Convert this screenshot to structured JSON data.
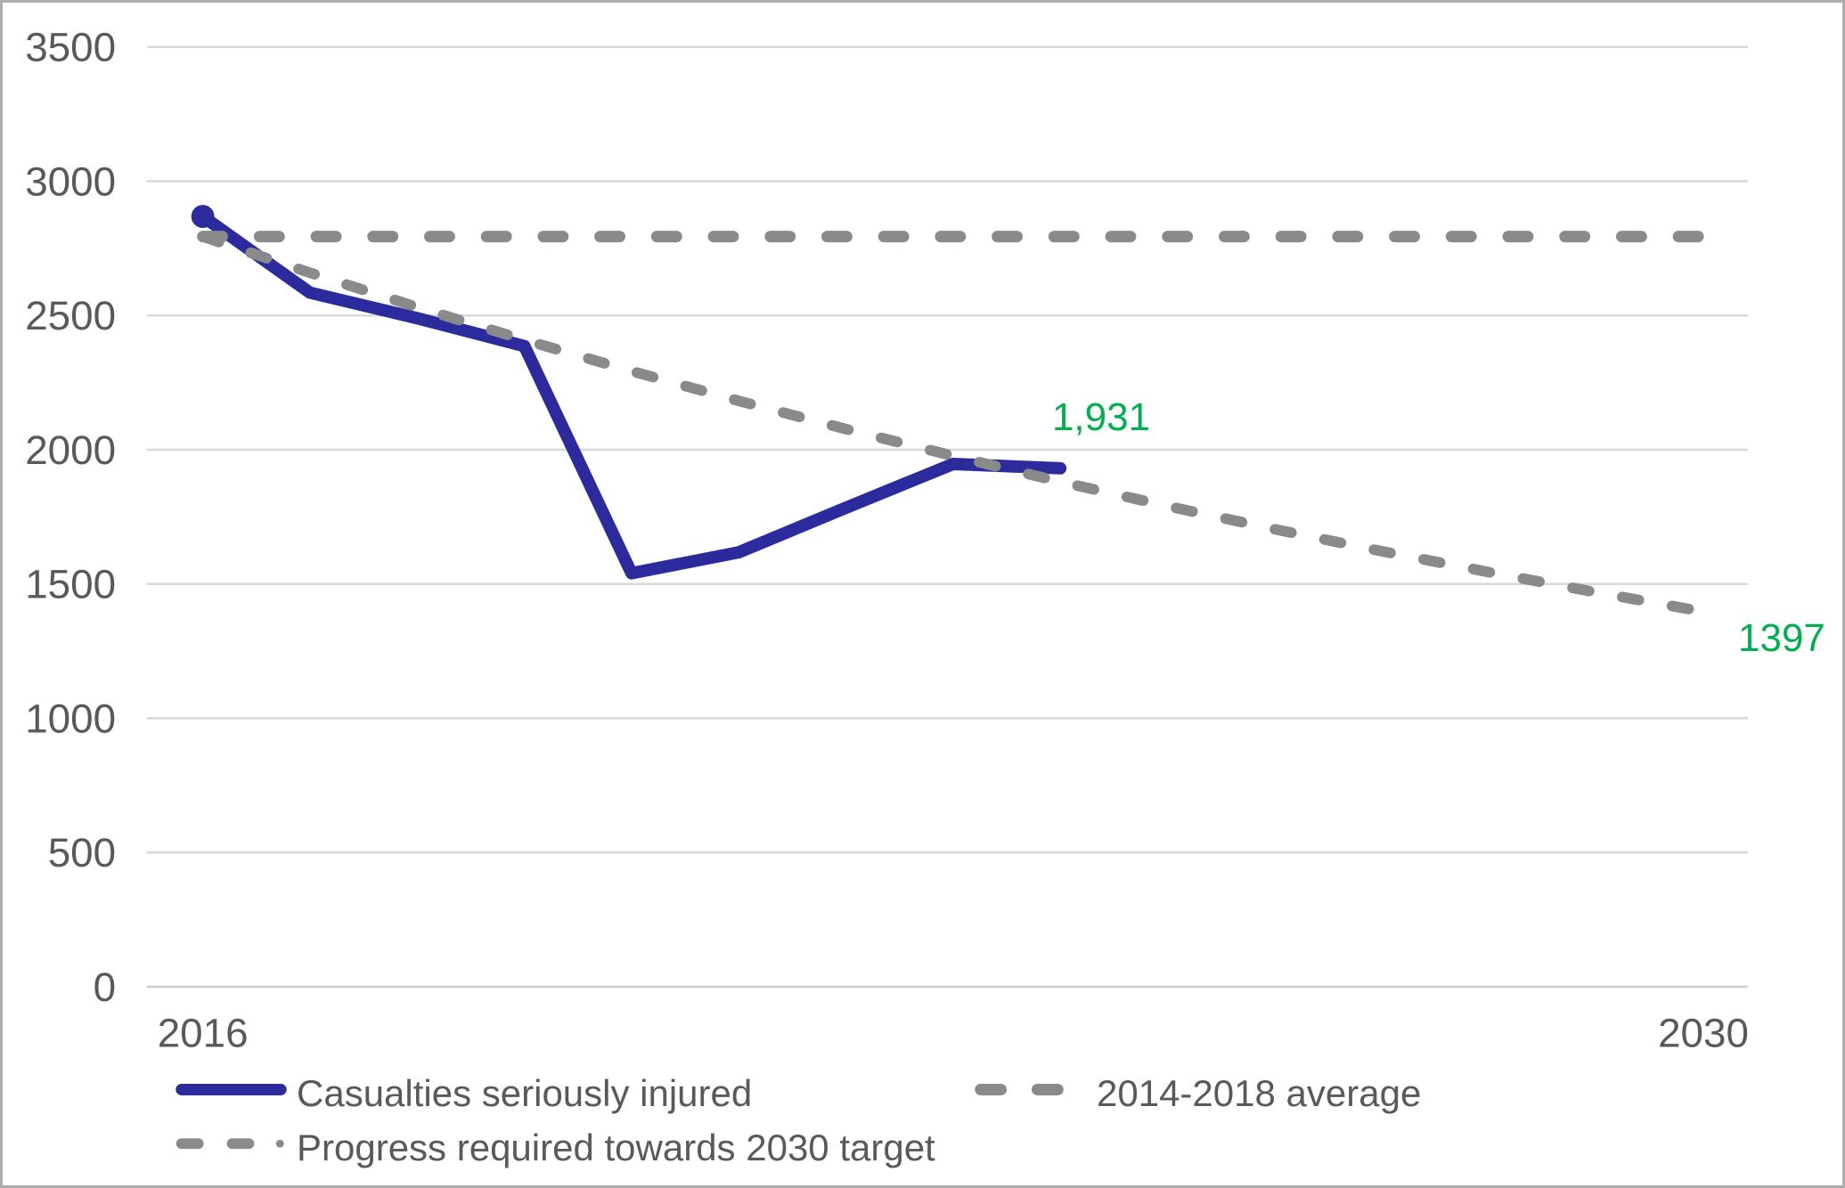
{
  "chart_data": {
    "type": "line",
    "title": "",
    "x_axis": {
      "min": 2016,
      "max": 2030,
      "tick_labels": [
        "2016",
        "2030"
      ]
    },
    "y_axis": {
      "min": 0,
      "max": 3500,
      "step": 500,
      "tick_labels": [
        "3500",
        "3000",
        "2500",
        "2000",
        "1500",
        "1000",
        "500",
        "0"
      ]
    },
    "grid": "horizontal",
    "legend_position": "bottom",
    "series": [
      {
        "name": "Casualties seriously injured",
        "color": "#2b2b9e",
        "line_style": "solid",
        "marker": "dot-at-first-point",
        "years": [
          2016,
          2017,
          2018,
          2019,
          2020,
          2021,
          2022,
          2023,
          2024
        ],
        "values": [
          2869,
          2585,
          2490,
          2386,
          1540,
          1618,
          1784,
          1947,
          1931
        ]
      },
      {
        "name": "2014-2018 average",
        "color": "#8a8a8a",
        "line_style": "dashed",
        "years": [
          2016,
          2030
        ],
        "values": [
          2794,
          2794
        ]
      },
      {
        "name": "Progress required towards 2030 target",
        "color": "#8a8a8a",
        "line_style": "dashed-dot",
        "years": [
          2016,
          2017,
          2018,
          2019,
          2020,
          2021,
          2022,
          2023,
          2024,
          2025,
          2026,
          2027,
          2028,
          2029,
          2030
        ],
        "values": [
          2794,
          2659,
          2531,
          2409,
          2293,
          2182,
          2077,
          1977,
          1881,
          1790,
          1704,
          1622,
          1544,
          1469,
          1397
        ]
      }
    ],
    "annotations": {
      "latest": {
        "text": "1,931",
        "color": "#00B050",
        "series": "Casualties seriously injured",
        "year": 2024,
        "value": 1931
      },
      "target": {
        "text": "1397",
        "color": "#00B050",
        "series": "Progress required towards 2030 target",
        "year": 2030,
        "value": 1397
      }
    },
    "colors": {
      "casualties_line": "#2b2b9e",
      "dashed_lines": "#8a8a8a",
      "gridline": "#d9d9d9",
      "axis_line": "#cccccc",
      "tick_text": "#595959",
      "annotation_green": "#00B050"
    }
  }
}
